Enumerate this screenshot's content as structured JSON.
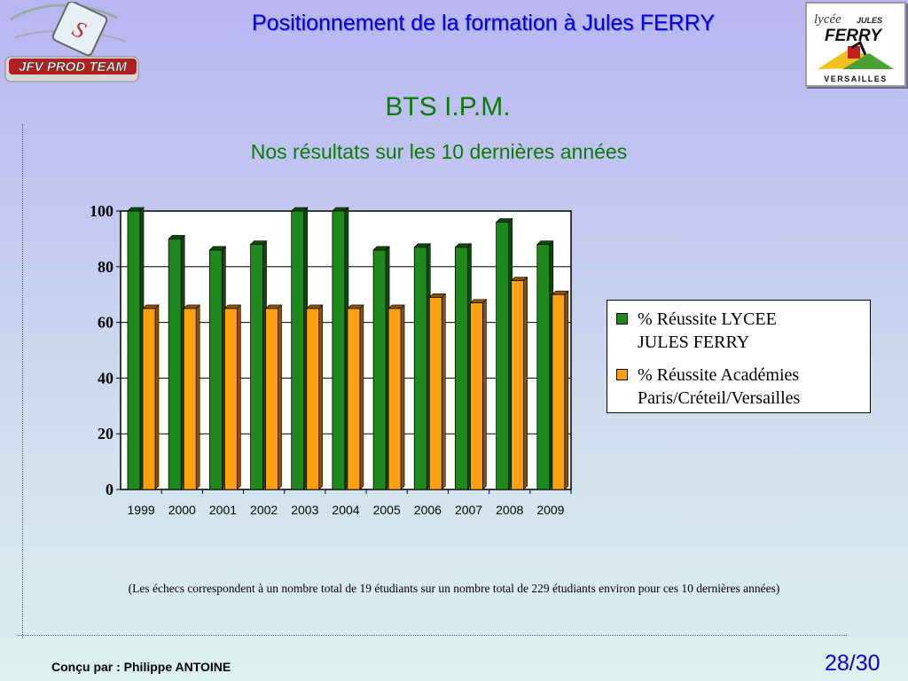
{
  "header": {
    "title": "Positionnement de la formation à Jules FERRY",
    "left_logo": "JFV PROD TEAM",
    "right_logo": {
      "line1": "lycée",
      "line2": "JULES",
      "line3": "FERRY",
      "line4": "VERSAILLES"
    }
  },
  "subtitle": "BTS I.P.M.",
  "subtitle2": "Nos résultats sur les 10 dernières années",
  "colors": {
    "lycee": "#1e8a1e",
    "academies": "#ffa010",
    "title": "#0000e0",
    "subtitle": "#0a7a0a"
  },
  "chart_data": {
    "type": "bar",
    "categories": [
      "1999",
      "2000",
      "2001",
      "2002",
      "2003",
      "2004",
      "2005",
      "2006",
      "2007",
      "2008",
      "2009"
    ],
    "series": [
      {
        "name": "% Réussite LYCEE JULES FERRY",
        "values": [
          100,
          90,
          86,
          88,
          100,
          100,
          86,
          87,
          87,
          96,
          88
        ]
      },
      {
        "name": "% Réussite Académies Paris/Créteil/Versailles",
        "values": [
          65,
          65,
          65,
          65,
          65,
          65,
          65,
          69,
          67,
          75,
          70
        ]
      }
    ],
    "yticks": [
      "0",
      "20",
      "40",
      "60",
      "80",
      "100"
    ],
    "ylim": [
      0,
      100
    ],
    "grid": true,
    "legend_position": "right"
  },
  "legend": {
    "item1_line1": "% Réussite LYCEE",
    "item1_line2": "JULES FERRY",
    "item2_line1": "% Réussite Académies",
    "item2_line2": "Paris/Créteil/Versailles"
  },
  "footnote": "(Les échecs correspondent à un nombre total de 19 étudiants sur un nombre total de 229 étudiants environ  pour ces 10 dernières années)",
  "author": "Conçu par : Philippe  ANTOINE",
  "page": "28/30"
}
